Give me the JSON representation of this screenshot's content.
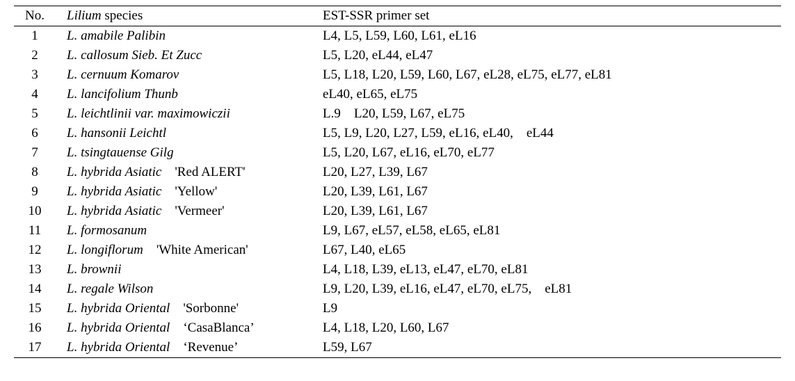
{
  "table": {
    "header": {
      "no": "No.",
      "species_italic": "Lilium",
      "species_rest": " species",
      "primer": "EST-SSR primer set"
    },
    "fontsize_header": 19,
    "fontsize_body": 19,
    "border_color": "#000000",
    "background_color": "#ffffff",
    "text_color": "#000000",
    "rows": [
      {
        "no": "1",
        "sp_it": "L. amabile Palibin",
        "sp_rm": "",
        "primer": "L4, L5, L59, L60, L61, eL16"
      },
      {
        "no": "2",
        "sp_it": "L. callosum Sieb. Et Zucc",
        "sp_rm": "",
        "primer": "L5, L20, eL44, eL47"
      },
      {
        "no": "3",
        "sp_it": "L. cernuum Komarov",
        "sp_rm": "",
        "primer": "L5, L18, L20, L59, L60, L67, eL28, eL75, eL77, eL81"
      },
      {
        "no": "4",
        "sp_it": "L. lancifolium Thunb",
        "sp_rm": "",
        "primer": "eL40, eL65, eL75"
      },
      {
        "no": "5",
        "sp_it": "L. leichtlinii var. maximowiczii",
        "sp_rm": "",
        "primer": "L.9 L20, L59, L67, eL75"
      },
      {
        "no": "6",
        "sp_it": "L. hansonii Leichtl",
        "sp_rm": "",
        "primer": "L5, L9, L20, L27, L59, eL16, eL40, eL44"
      },
      {
        "no": "7",
        "sp_it": "L. tsingtauense Gilg",
        "sp_rm": "",
        "primer": "L5, L20, L67, eL16, eL70, eL77"
      },
      {
        "no": "8",
        "sp_it": "L. hybrida Asiatic",
        "sp_rm": " 'Red ALERT'",
        "primer": "L20, L27, L39, L67"
      },
      {
        "no": "9",
        "sp_it": "L. hybrida Asiatic",
        "sp_rm": " 'Yellow'",
        "primer": "L20, L39, L61, L67"
      },
      {
        "no": "10",
        "sp_it": "L. hybrida Asiatic",
        "sp_rm": " 'Vermeer'",
        "primer": "L20, L39, L61, L67"
      },
      {
        "no": "11",
        "sp_it": "L. formosanum",
        "sp_rm": "",
        "primer": "L9, L67, eL57, eL58, eL65, eL81"
      },
      {
        "no": "12",
        "sp_it": "L. longiflorum",
        "sp_rm": " 'White American'",
        "primer": "L67, L40, eL65"
      },
      {
        "no": "13",
        "sp_it": "L. brownii",
        "sp_rm": "",
        "primer": "L4, L18, L39, eL13, eL47, eL70, eL81"
      },
      {
        "no": "14",
        "sp_it": "L. regale Wilson",
        "sp_rm": "",
        "primer": "L9, L20, L39, eL16, eL47, eL70, eL75, eL81"
      },
      {
        "no": "15",
        "sp_it": "L. hybrida Oriental",
        "sp_rm": " 'Sorbonne'",
        "primer": "L9"
      },
      {
        "no": "16",
        "sp_it": "L. hybrida Oriental",
        "sp_rm": " ‘CasaBlanca’",
        "primer": "L4, L18, L20, L60, L67"
      },
      {
        "no": "17",
        "sp_it": "L. hybrida Oriental",
        "sp_rm": " ‘Revenue’",
        "primer": "L59, L67"
      }
    ]
  }
}
